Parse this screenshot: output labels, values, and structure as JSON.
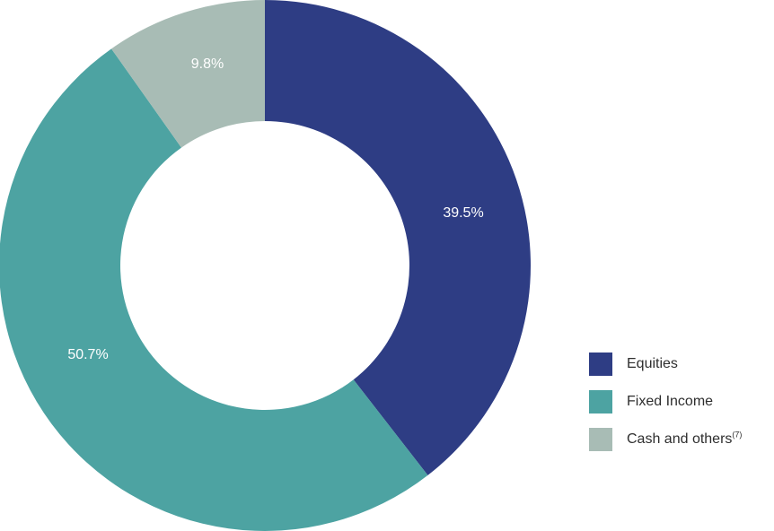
{
  "chart_data": {
    "type": "pie",
    "title": "",
    "subtitle": "",
    "series": [
      {
        "values": [
          39.5,
          50.7,
          9.8
        ]
      }
    ],
    "slices": [
      {
        "label": "Equities",
        "value": 39.5,
        "value_label": "39.5%",
        "color": "#2e3d84"
      },
      {
        "label": "Fixed Income",
        "value": 50.7,
        "value_label": "50.7%",
        "color": "#4da3a2"
      },
      {
        "label": "Cash and others",
        "footnote": "(7)",
        "value": 9.8,
        "value_label": "9.8%",
        "color": "#a8bcb5"
      }
    ],
    "donut": true,
    "start": "top",
    "direction": "clockwise",
    "legend_position": "bottom-right"
  }
}
